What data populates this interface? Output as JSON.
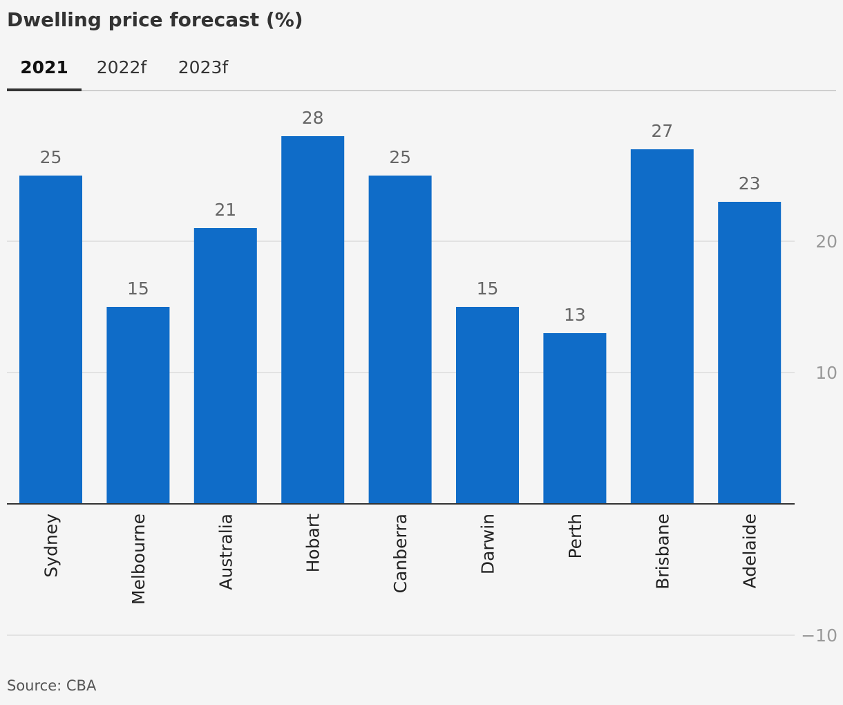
{
  "chart_data": {
    "type": "bar",
    "title": "Dwelling price forecast (%)",
    "tabs": [
      {
        "label": "2021",
        "active": true
      },
      {
        "label": "2022f",
        "active": false
      },
      {
        "label": "2023f",
        "active": false
      }
    ],
    "categories": [
      "Sydney",
      "Melbourne",
      "Australia",
      "Hobart",
      "Canberra",
      "Darwin",
      "Perth",
      "Brisbane",
      "Adelaide"
    ],
    "values": [
      25,
      15,
      21,
      28,
      25,
      15,
      13,
      27,
      23
    ],
    "data_labels": [
      "25",
      "15",
      "21",
      "28",
      "25",
      "15",
      "13",
      "27",
      "23"
    ],
    "yticks": [
      20,
      10,
      -10
    ],
    "ytick_labels": [
      "20",
      "10",
      "−10"
    ],
    "ylim": [
      -10,
      30
    ],
    "grid": true,
    "y_axis_side": "right",
    "bar_color": "#0f6cc8",
    "source": "Source: CBA"
  }
}
